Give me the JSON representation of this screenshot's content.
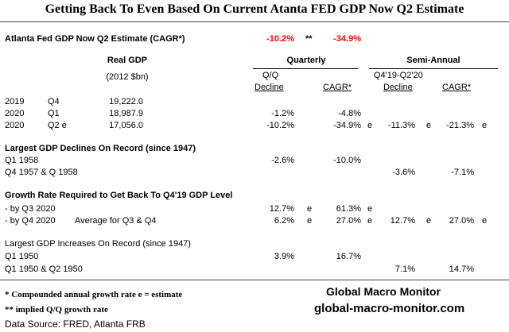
{
  "title": "Getting Back To Even Based On Current Atanta FED GDP Now Q2 Estimate",
  "estimate_row": {
    "label": "Atlanta Fed GDP Now Q2 Estimate  (CAGR*)",
    "value1": "-10.2%",
    "marker": "**",
    "value2": "-34.9%"
  },
  "headers": {
    "real_gdp": "Real GDP",
    "units": "(2012 $bn)",
    "quarterly": "Quarterly",
    "semi_annual": "Semi-Annual",
    "qq": "Q/Q",
    "decline": "Decline",
    "cagr": "CAGR*",
    "period": "Q4'19-Q2'20",
    "decline2": "Decline",
    "cagr2": "CAGR*"
  },
  "gdp_rows": [
    {
      "year": "2019",
      "q": "Q4",
      "gdp": "19,222.0",
      "qq": "",
      "e1": "",
      "cagr": "",
      "e2": "",
      "semi": "",
      "e3": "",
      "semi_cagr": "",
      "e4": ""
    },
    {
      "year": "2020",
      "q": "Q1",
      "gdp": "18,987.9",
      "qq": "-1.2%",
      "e1": "",
      "cagr": "-4.8%",
      "e2": "",
      "semi": "",
      "e3": "",
      "semi_cagr": "",
      "e4": ""
    },
    {
      "year": "2020",
      "q": "Q2 e",
      "gdp": "17,056.0",
      "qq": "-10.2%",
      "e1": "",
      "cagr": "-34.9%",
      "e2": "e",
      "semi": "-11.3%",
      "e3": "e",
      "semi_cagr": "-21.3%",
      "e4": "e"
    }
  ],
  "largest_declines": {
    "heading": "Largest GDP Declines On Record (since 1947)",
    "rows": [
      {
        "label": "Q1 1958",
        "qq": "-2.6%",
        "cagr": "-10.0%",
        "semi": "",
        "semi_cagr": ""
      },
      {
        "label": "Q4 1957 & Q 1958",
        "qq": "",
        "cagr": "",
        "semi": "-3.6%",
        "semi_cagr": "-7.1%"
      }
    ]
  },
  "growth_required": {
    "heading": "Growth Rate Required to Get Back To Q4'19 GDP Level",
    "rows": [
      {
        "label": " - by Q3 2020",
        "note": "",
        "qq": "12.7%",
        "e1": "e",
        "cagr": "61.3%",
        "e2": "e",
        "semi": "",
        "e3": "",
        "semi_cagr": "",
        "e4": ""
      },
      {
        "label": " - by Q4 2020",
        "note": "Average for Q3 & Q4",
        "qq": "6.2%",
        "e1": "e",
        "cagr": "27.0%",
        "e2": "e",
        "semi": "12.7%",
        "e3": "e",
        "semi_cagr": "27.0%",
        "e4": "e"
      }
    ]
  },
  "largest_increases": {
    "heading": "Largest GDP Increases On Record (since 1947)",
    "rows": [
      {
        "label": "Q1 1950",
        "qq": "3.9%",
        "cagr": "16.7%",
        "semi": "",
        "semi_cagr": ""
      },
      {
        "label": "Q1 1950 & Q2 1950",
        "qq": "",
        "cagr": "",
        "semi": "7.1%",
        "semi_cagr": "14.7%"
      }
    ]
  },
  "footer": {
    "note1": "* Compounded annual growth rate    e = estimate",
    "note2": "** implied Q/Q growth rate",
    "source": "Data Source:  FRED,  Atlanta FRB",
    "brand": "Global Macro Monitor",
    "url": "global-macro-monitor.com"
  }
}
